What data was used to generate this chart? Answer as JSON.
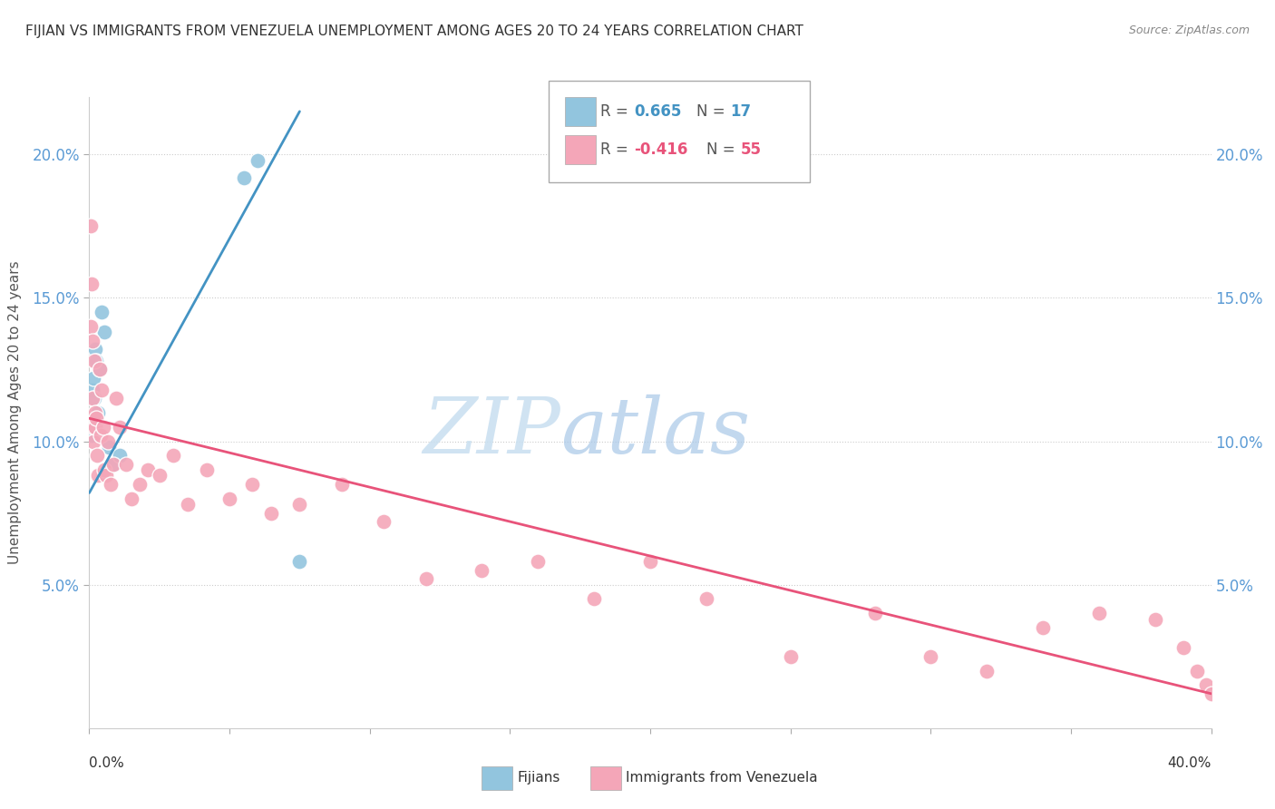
{
  "title": "FIJIAN VS IMMIGRANTS FROM VENEZUELA UNEMPLOYMENT AMONG AGES 20 TO 24 YEARS CORRELATION CHART",
  "source": "Source: ZipAtlas.com",
  "ylabel": "Unemployment Among Ages 20 to 24 years",
  "xlim": [
    0.0,
    40.0
  ],
  "ylim": [
    0.0,
    22.0
  ],
  "yticks": [
    5.0,
    10.0,
    15.0,
    20.0
  ],
  "ytick_labels": [
    "5.0%",
    "10.0%",
    "15.0%",
    "20.0%"
  ],
  "xtick_labels": [
    "0.0%",
    "40.0%"
  ],
  "legend_blue_r_val": "0.665",
  "legend_blue_n_val": "17",
  "legend_pink_r_val": "-0.416",
  "legend_pink_n_val": "55",
  "blue_color": "#92c5de",
  "pink_color": "#f4a6b8",
  "blue_line_color": "#4393c3",
  "pink_line_color": "#e8537a",
  "watermark_zip": "ZIP",
  "watermark_atlas": "atlas",
  "fijian_x": [
    0.05,
    0.08,
    0.12,
    0.15,
    0.18,
    0.22,
    0.25,
    0.3,
    0.38,
    0.45,
    0.55,
    0.7,
    0.9,
    1.1,
    5.5,
    6.0,
    7.5
  ],
  "fijian_y": [
    10.5,
    10.2,
    11.8,
    12.2,
    11.5,
    13.2,
    12.8,
    11.0,
    12.5,
    14.5,
    13.8,
    9.8,
    9.2,
    9.5,
    19.2,
    19.8,
    5.8
  ],
  "venezuela_x": [
    0.04,
    0.06,
    0.08,
    0.1,
    0.12,
    0.14,
    0.16,
    0.18,
    0.2,
    0.22,
    0.25,
    0.28,
    0.32,
    0.36,
    0.4,
    0.45,
    0.5,
    0.55,
    0.6,
    0.68,
    0.75,
    0.85,
    0.95,
    1.1,
    1.3,
    1.5,
    1.8,
    2.1,
    2.5,
    3.0,
    3.5,
    4.2,
    5.0,
    5.8,
    6.5,
    7.5,
    9.0,
    10.5,
    12.0,
    14.0,
    16.0,
    18.0,
    20.0,
    22.0,
    25.0,
    28.0,
    30.0,
    32.0,
    34.0,
    36.0,
    38.0,
    39.0,
    39.5,
    39.8,
    40.0
  ],
  "venezuela_y": [
    17.5,
    14.0,
    15.5,
    11.5,
    13.5,
    10.5,
    10.0,
    12.8,
    11.0,
    10.5,
    10.8,
    9.5,
    8.8,
    12.5,
    10.2,
    11.8,
    10.5,
    9.0,
    8.8,
    10.0,
    8.5,
    9.2,
    11.5,
    10.5,
    9.2,
    8.0,
    8.5,
    9.0,
    8.8,
    9.5,
    7.8,
    9.0,
    8.0,
    8.5,
    7.5,
    7.8,
    8.5,
    7.2,
    5.2,
    5.5,
    5.8,
    4.5,
    5.8,
    4.5,
    2.5,
    4.0,
    2.5,
    2.0,
    3.5,
    4.0,
    3.8,
    2.8,
    2.0,
    1.5,
    1.2
  ],
  "blue_line_x": [
    0.0,
    7.5
  ],
  "blue_line_y_start": 8.2,
  "blue_line_y_end": 21.5,
  "pink_line_x_start": 0.0,
  "pink_line_x_end": 40.0,
  "pink_line_y_start": 10.8,
  "pink_line_y_end": 1.2
}
